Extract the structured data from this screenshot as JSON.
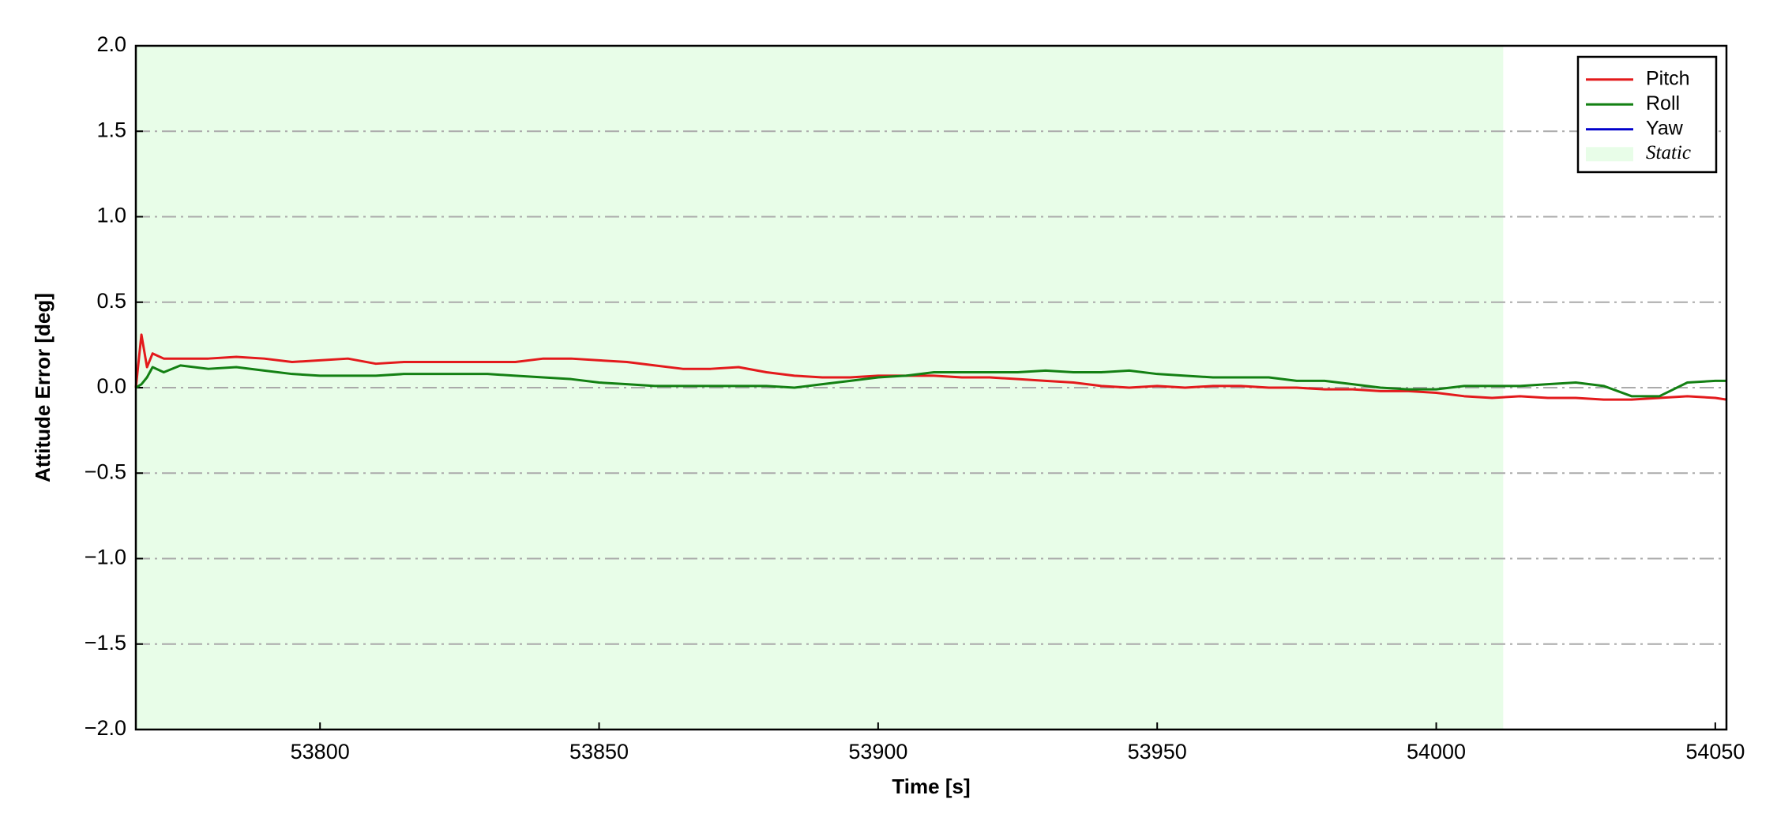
{
  "chart_data": {
    "type": "line",
    "xlabel": "Time [s]",
    "ylabel": "Attitude Error [deg]",
    "x": [
      53767,
      53768,
      53769,
      53770,
      53772,
      53775,
      53780,
      53785,
      53790,
      53795,
      53800,
      53805,
      53810,
      53815,
      53820,
      53825,
      53830,
      53835,
      53840,
      53845,
      53850,
      53855,
      53860,
      53865,
      53870,
      53875,
      53880,
      53885,
      53890,
      53895,
      53900,
      53905,
      53910,
      53915,
      53920,
      53925,
      53930,
      53935,
      53940,
      53945,
      53950,
      53955,
      53960,
      53965,
      53970,
      53975,
      53980,
      53985,
      53990,
      53995,
      54000,
      54005,
      54010,
      54015,
      54020,
      54025,
      54030,
      54035,
      54040,
      54045,
      54050,
      54052
    ],
    "series": [
      {
        "name": "Pitch",
        "color": "#e31a1c",
        "values": [
          0,
          0.31,
          0.12,
          0.2,
          0.17,
          0.17,
          0.17,
          0.18,
          0.17,
          0.15,
          0.16,
          0.17,
          0.14,
          0.15,
          0.15,
          0.15,
          0.15,
          0.15,
          0.17,
          0.17,
          0.16,
          0.15,
          0.13,
          0.11,
          0.11,
          0.12,
          0.09,
          0.07,
          0.06,
          0.06,
          0.07,
          0.07,
          0.07,
          0.06,
          0.06,
          0.05,
          0.04,
          0.03,
          0.01,
          0.0,
          0.01,
          0.0,
          0.01,
          0.01,
          0.0,
          0.0,
          -0.01,
          -0.01,
          -0.02,
          -0.02,
          -0.03,
          -0.05,
          -0.06,
          -0.05,
          -0.06,
          -0.06,
          -0.07,
          -0.07,
          -0.06,
          -0.05,
          -0.06,
          -0.07
        ]
      },
      {
        "name": "Roll",
        "color": "#138013",
        "values": [
          0,
          0.02,
          0.06,
          0.12,
          0.09,
          0.13,
          0.11,
          0.12,
          0.1,
          0.08,
          0.07,
          0.07,
          0.07,
          0.08,
          0.08,
          0.08,
          0.08,
          0.07,
          0.06,
          0.05,
          0.03,
          0.02,
          0.01,
          0.01,
          0.01,
          0.01,
          0.01,
          0.0,
          0.02,
          0.04,
          0.06,
          0.07,
          0.09,
          0.09,
          0.09,
          0.09,
          0.1,
          0.09,
          0.09,
          0.1,
          0.08,
          0.07,
          0.06,
          0.06,
          0.06,
          0.04,
          0.04,
          0.02,
          0.0,
          -0.01,
          -0.01,
          0.01,
          0.01,
          0.01,
          0.02,
          0.03,
          0.01,
          -0.05,
          -0.05,
          0.03,
          0.04,
          0.04
        ]
      },
      {
        "name": "Yaw",
        "color": "#0000cc",
        "values": [
          null,
          null,
          null,
          null,
          null,
          null,
          null,
          null,
          null,
          null,
          null,
          null,
          null,
          null,
          null,
          null,
          null,
          null,
          null,
          null,
          null,
          null,
          null,
          null,
          null,
          null,
          null,
          null,
          null,
          null,
          null,
          null,
          null,
          null,
          null,
          null,
          null,
          null,
          null,
          null,
          null,
          null,
          null,
          null,
          null,
          null,
          null,
          null,
          null,
          null,
          null,
          null,
          null,
          null,
          null,
          null,
          null,
          null,
          null,
          null,
          null,
          null
        ]
      }
    ],
    "static": {
      "label": "Static",
      "x": [
        53767,
        54012
      ],
      "color": "#e8fde8"
    },
    "xlim": [
      53767,
      54052
    ],
    "xticks": [
      53800,
      53850,
      53900,
      53950,
      54000,
      54050
    ],
    "ylim": [
      -2,
      2
    ],
    "yticks": [
      {
        "value": -2,
        "label": "−2.0"
      },
      {
        "value": -1.5,
        "label": "−1.5"
      },
      {
        "value": -1,
        "label": "−1.0"
      },
      {
        "value": -0.5,
        "label": "−0.5"
      },
      {
        "value": 0,
        "label": "0.0"
      },
      {
        "value": 0.5,
        "label": "0.5"
      },
      {
        "value": 1,
        "label": "1.0"
      },
      {
        "value": 1.5,
        "label": "1.5"
      },
      {
        "value": 2,
        "label": "2.0"
      }
    ],
    "grid": true,
    "legend": "upper right"
  }
}
